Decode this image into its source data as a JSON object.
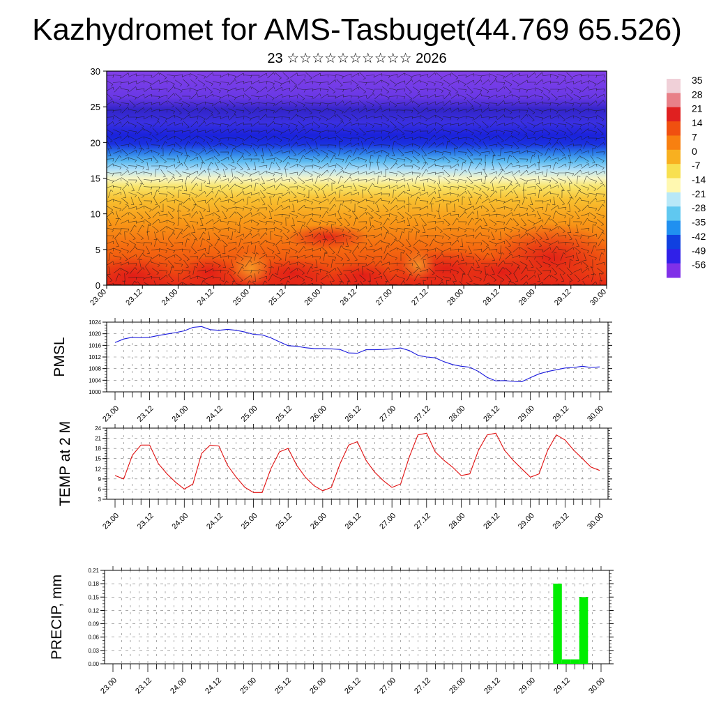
{
  "title": "Kazhydromet for AMS-Tasbuget(44.769 65.526)",
  "subtitle": "23 ☆☆☆☆☆☆☆☆☆☆ 2026",
  "colors": {
    "pmsl_line": "#1a1adc",
    "temp_line": "#e01010",
    "precip_bar": "#00ee00",
    "grid": "#777777"
  },
  "chart_data": [
    {
      "type": "heatmap",
      "name": "vertical-cross-section",
      "title": "",
      "ylabel": "",
      "ylim": [
        0,
        30
      ],
      "yticks": [
        "0",
        "5",
        "10",
        "15",
        "20",
        "25",
        "30"
      ],
      "x_tick_labels": [
        "23.00",
        "23.12",
        "24.00",
        "24.12",
        "25.00",
        "25.12",
        "26.00",
        "26.12",
        "27.00",
        "27.12",
        "28.00",
        "28.12",
        "29.00",
        "29.12",
        "30.00"
      ],
      "colorbar_labels": [
        "35",
        "28",
        "21",
        "14",
        "7",
        "0",
        "-7",
        "-14",
        "-21",
        "-28",
        "-35",
        "-42",
        "-49",
        "-56"
      ],
      "colorbar_colors": [
        "#f0d0d8",
        "#e88088",
        "#e02020",
        "#f05010",
        "#f88010",
        "#f8b020",
        "#f8e050",
        "#fff8b0",
        "#b8e8f8",
        "#60c8f0",
        "#2090f0",
        "#1040e0",
        "#3020e8",
        "#8030e8"
      ],
      "layers": [
        {
          "z": 0,
          "t": "warm-surface"
        },
        {
          "z": 10,
          "t": "~10"
        },
        {
          "z": 15,
          "t": "~-10"
        },
        {
          "z": 20,
          "t": "~-45"
        },
        {
          "z": 30,
          "t": "~-55"
        }
      ]
    },
    {
      "type": "line",
      "name": "pmsl",
      "ylabel": "PMSL",
      "ylim": [
        1000,
        1024
      ],
      "yticks": [
        "1000",
        "1004",
        "1008",
        "1012",
        "1016",
        "1020",
        "1024"
      ],
      "x_tick_labels": [
        "23.00",
        "23.12",
        "24.00",
        "24.12",
        "25.00",
        "25.12",
        "26.00",
        "26.12",
        "27.00",
        "27.12",
        "28.00",
        "28.12",
        "29.00",
        "29.12",
        "30.00"
      ],
      "series": [
        {
          "name": "PMSL",
          "x": [
            0,
            3,
            6,
            9,
            12,
            15,
            18,
            21,
            24,
            27,
            30,
            33,
            36,
            39,
            42,
            45,
            48,
            51,
            54,
            57,
            60,
            63,
            66,
            69,
            72,
            75,
            78,
            81,
            84,
            87,
            90,
            93,
            96,
            99,
            102,
            105,
            108,
            111,
            114,
            117,
            120,
            123,
            126,
            129,
            132,
            135,
            138,
            141,
            144,
            147,
            150,
            153,
            156,
            159,
            162,
            165,
            168
          ],
          "values": [
            1017.0,
            1018.2,
            1018.8,
            1018.6,
            1018.8,
            1019.4,
            1019.9,
            1020.4,
            1021.0,
            1022.2,
            1022.5,
            1021.4,
            1021.2,
            1021.5,
            1021.2,
            1020.6,
            1019.8,
            1019.6,
            1018.6,
            1017.2,
            1015.9,
            1015.7,
            1015.2,
            1014.9,
            1014.9,
            1014.8,
            1014.6,
            1013.4,
            1013.3,
            1014.5,
            1014.5,
            1014.6,
            1014.8,
            1015.1,
            1014.2,
            1012.6,
            1012.0,
            1011.7,
            1010.4,
            1009.4,
            1008.8,
            1008.5,
            1007.0,
            1005.0,
            1003.8,
            1003.9,
            1003.6,
            1003.5,
            1004.9,
            1006.2,
            1007.0,
            1007.6,
            1008.2,
            1008.4,
            1008.8,
            1008.4,
            1008.6
          ]
        }
      ]
    },
    {
      "type": "line",
      "name": "temp-2m",
      "ylabel": "TEMP at 2 M",
      "ylim": [
        3,
        24
      ],
      "yticks": [
        "3",
        "6",
        "9",
        "12",
        "15",
        "18",
        "21",
        "24"
      ],
      "x_tick_labels": [
        "23.00",
        "23.12",
        "24.00",
        "24.12",
        "25.00",
        "25.12",
        "26.00",
        "26.12",
        "27.00",
        "27.12",
        "28.00",
        "28.12",
        "29.00",
        "29.12",
        "30.00"
      ],
      "series": [
        {
          "name": "T2M",
          "x": [
            0,
            3,
            6,
            9,
            12,
            15,
            18,
            21,
            24,
            27,
            30,
            33,
            36,
            39,
            42,
            45,
            48,
            51,
            54,
            57,
            60,
            63,
            66,
            69,
            72,
            75,
            78,
            81,
            84,
            87,
            90,
            93,
            96,
            99,
            102,
            105,
            108,
            111,
            114,
            117,
            120,
            123,
            126,
            129,
            132,
            135,
            138,
            141,
            144,
            147,
            150,
            153,
            156,
            159,
            162,
            165,
            168
          ],
          "values": [
            10.0,
            9.0,
            16.0,
            19.0,
            19.0,
            13.5,
            10.5,
            8.0,
            6.0,
            7.5,
            16.5,
            19.0,
            18.7,
            13.0,
            9.5,
            6.5,
            5.0,
            5.0,
            12.0,
            17.0,
            18.0,
            13.0,
            9.5,
            7.0,
            5.5,
            6.5,
            13.5,
            19.0,
            20.0,
            14.5,
            11.0,
            8.5,
            6.5,
            7.5,
            15.5,
            22.0,
            22.5,
            17.0,
            14.5,
            12.5,
            10.0,
            10.5,
            17.5,
            22.0,
            22.5,
            17.5,
            14.5,
            12.0,
            9.5,
            10.5,
            17.5,
            22.0,
            20.5,
            17.5,
            15.0,
            12.5,
            11.5
          ]
        }
      ]
    },
    {
      "type": "bar",
      "name": "precip",
      "ylabel": "PRECIP, mm",
      "ylim": [
        0,
        0.21
      ],
      "yticks": [
        "0.00",
        "0.03",
        "0.06",
        "0.09",
        "0.12",
        "0.15",
        "0.18",
        "0.21"
      ],
      "x_tick_labels": [
        "23.00",
        "23.12",
        "24.00",
        "24.12",
        "25.00",
        "25.12",
        "26.00",
        "26.12",
        "27.00",
        "27.12",
        "28.00",
        "28.12",
        "29.00",
        "29.12",
        "30.00"
      ],
      "series": [
        {
          "name": "PRECIP",
          "x": [
            153,
            156,
            159,
            162
          ],
          "values": [
            0.18,
            0.01,
            0.01,
            0.15
          ]
        }
      ]
    }
  ]
}
